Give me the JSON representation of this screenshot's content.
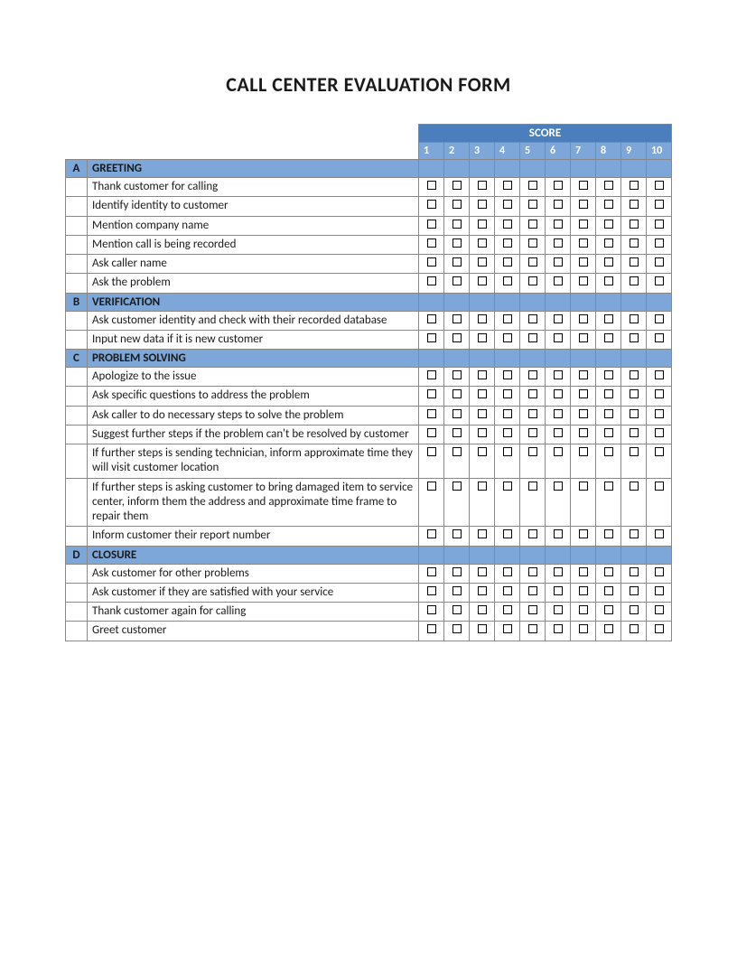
{
  "title": "CALL CENTER EVALUATION FORM",
  "score_header": "SCORE",
  "score_numbers": [
    "1",
    "2",
    "3",
    "4",
    "5",
    "6",
    "7",
    "8",
    "9",
    "10"
  ],
  "colors": {
    "score_header_bg": "#4a7ebd",
    "section_bg": "#7da7d9",
    "text": "#1a1a1a",
    "border": "#888888"
  },
  "sections": [
    {
      "letter": "A",
      "title": "GREETING",
      "items": [
        "Thank customer for calling",
        "Identify identity to customer",
        "Mention company name",
        "Mention call is being recorded",
        "Ask caller name",
        "Ask the problem"
      ]
    },
    {
      "letter": "B",
      "title": "VERIFICATION",
      "items": [
        "Ask customer identity and check with their recorded database",
        "Input new data if it is new customer"
      ]
    },
    {
      "letter": "C",
      "title": "PROBLEM SOLVING",
      "items": [
        "Apologize to the issue",
        "Ask specific questions to address the problem",
        "Ask caller to do necessary steps to solve the problem",
        "Suggest further steps if the problem can't be resolved by customer",
        "If further steps is sending technician, inform approximate time they will visit customer location",
        "If further steps is asking customer to bring damaged item to service center, inform them the address and approximate time frame to repair them",
        "Inform customer their report number"
      ]
    },
    {
      "letter": "D",
      "title": "CLOSURE",
      "items": [
        "Ask customer for other problems",
        "Ask customer if they are satisfied with your service",
        "Thank customer again for calling",
        "Greet customer"
      ]
    }
  ]
}
